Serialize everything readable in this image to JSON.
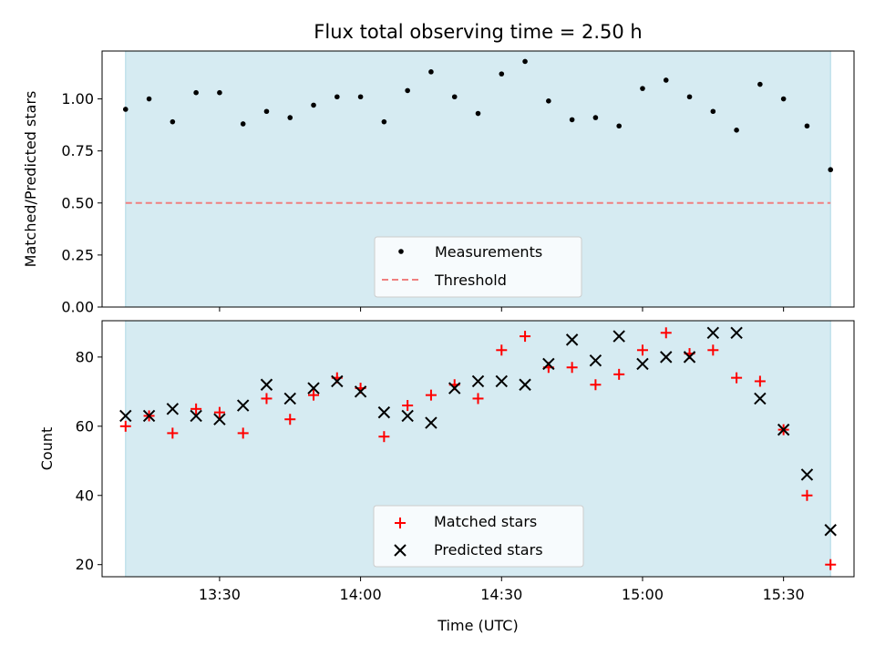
{
  "chart_data": [
    {
      "type": "scatter",
      "title": "Flux total observing time = 2.50 h",
      "xlabel": "",
      "ylabel": "Matched/Predicted stars",
      "ylim": [
        0,
        1.23
      ],
      "yticks": [
        "0.00",
        "0.25",
        "0.50",
        "0.75",
        "1.00"
      ],
      "ytick_values": [
        0,
        0.25,
        0.5,
        0.75,
        1.0
      ],
      "grid": false,
      "legend_position": "bottom-center",
      "shaded_span_x": [
        "13:10",
        "15:40"
      ],
      "series": [
        {
          "name": "Measurements",
          "kind": "dot",
          "color": "#000000",
          "x": [
            "13:10",
            "13:15",
            "13:20",
            "13:25",
            "13:30",
            "13:35",
            "13:40",
            "13:45",
            "13:50",
            "13:55",
            "14:00",
            "14:05",
            "14:10",
            "14:15",
            "14:20",
            "14:25",
            "14:30",
            "14:35",
            "14:40",
            "14:45",
            "14:50",
            "14:55",
            "15:00",
            "15:05",
            "15:10",
            "15:15",
            "15:20",
            "15:25",
            "15:30",
            "15:35",
            "15:40"
          ],
          "y": [
            0.95,
            1.0,
            0.89,
            1.03,
            1.03,
            0.88,
            0.94,
            0.91,
            0.97,
            1.01,
            1.01,
            0.89,
            1.04,
            1.13,
            1.01,
            0.93,
            1.12,
            1.18,
            0.99,
            0.9,
            0.91,
            0.87,
            1.05,
            1.09,
            1.01,
            0.94,
            0.85,
            1.07,
            1.0,
            0.87,
            0.66
          ]
        },
        {
          "name": "Threshold",
          "kind": "dashed-line",
          "color": "#f08080",
          "y_constant": 0.5
        }
      ]
    },
    {
      "type": "scatter",
      "xlabel": "Time (UTC)",
      "ylabel": "Count",
      "ylim": [
        16.5,
        90.5
      ],
      "yticks": [
        "20",
        "40",
        "60",
        "80"
      ],
      "ytick_values": [
        20,
        40,
        60,
        80
      ],
      "xticks": [
        "13:30",
        "14:00",
        "14:30",
        "15:00",
        "15:30"
      ],
      "xlim": [
        "13:05",
        "15:45"
      ],
      "grid": false,
      "legend_position": "bottom-center",
      "shaded_span_x": [
        "13:10",
        "15:40"
      ],
      "x": [
        "13:10",
        "13:15",
        "13:20",
        "13:25",
        "13:30",
        "13:35",
        "13:40",
        "13:45",
        "13:50",
        "13:55",
        "14:00",
        "14:05",
        "14:10",
        "14:15",
        "14:20",
        "14:25",
        "14:30",
        "14:35",
        "14:40",
        "14:45",
        "14:50",
        "14:55",
        "15:00",
        "15:05",
        "15:10",
        "15:15",
        "15:20",
        "15:25",
        "15:30",
        "15:35",
        "15:40"
      ],
      "series": [
        {
          "name": "Matched stars",
          "marker": "plus",
          "color": "#ff0000",
          "values": [
            60,
            63,
            58,
            65,
            64,
            58,
            68,
            62,
            69,
            74,
            71,
            57,
            66,
            69,
            72,
            68,
            82,
            86,
            77,
            77,
            72,
            75,
            82,
            87,
            81,
            82,
            74,
            73,
            59,
            40,
            20
          ]
        },
        {
          "name": "Predicted stars",
          "marker": "x",
          "color": "#000000",
          "values": [
            63,
            63,
            65,
            63,
            62,
            66,
            72,
            68,
            71,
            73,
            70,
            64,
            63,
            61,
            71,
            73,
            73,
            72,
            78,
            85,
            79,
            86,
            78,
            80,
            80,
            87,
            87,
            68,
            59,
            46,
            30
          ]
        }
      ]
    }
  ],
  "colors": {
    "span_fill": "#add8e6",
    "threshold": "#f08080",
    "matched": "#ff0000",
    "predicted": "#000000"
  }
}
